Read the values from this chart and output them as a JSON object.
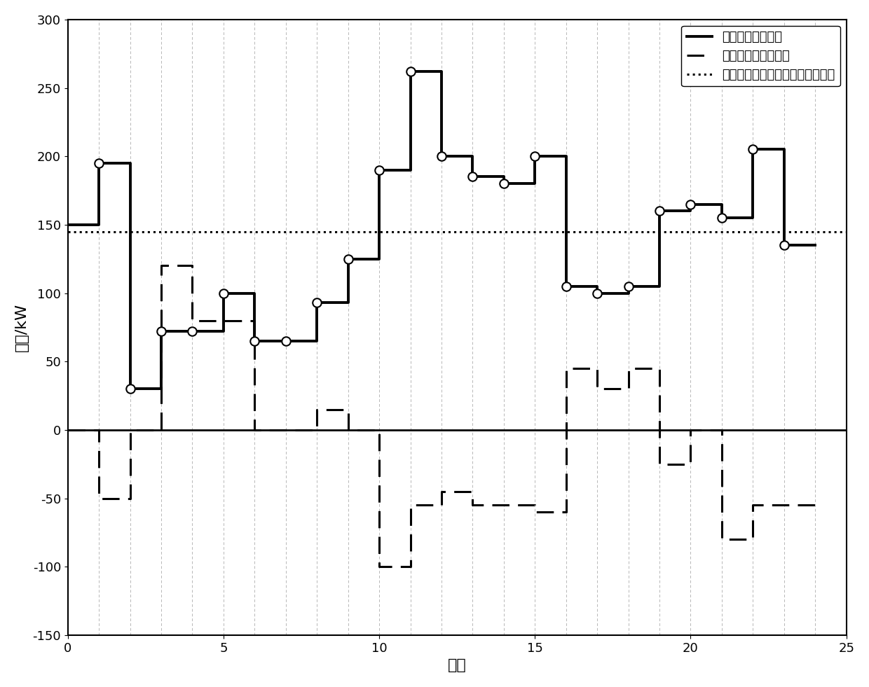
{
  "title": "",
  "xlabel": "时刻",
  "ylabel": "功率/kW",
  "xlim": [
    0,
    25
  ],
  "ylim": [
    -150,
    300
  ],
  "xticks": [
    0,
    5,
    10,
    15,
    20,
    25
  ],
  "yticks": [
    -150,
    -100,
    -50,
    0,
    50,
    100,
    150,
    200,
    250,
    300
  ],
  "dotted_line_y": 145,
  "load_x": [
    0,
    1,
    1,
    2,
    2,
    3,
    3,
    4,
    4,
    5,
    5,
    6,
    6,
    7,
    7,
    8,
    8,
    9,
    9,
    10,
    10,
    11,
    11,
    12,
    12,
    13,
    13,
    14,
    14,
    15,
    15,
    16,
    16,
    17,
    17,
    18,
    18,
    19,
    19,
    20,
    20,
    21,
    21,
    22,
    22,
    23,
    23,
    24
  ],
  "load_y": [
    150,
    150,
    195,
    195,
    30,
    30,
    72,
    72,
    72,
    72,
    100,
    100,
    65,
    65,
    65,
    65,
    93,
    93,
    125,
    125,
    190,
    190,
    262,
    262,
    200,
    200,
    185,
    185,
    180,
    180,
    200,
    200,
    105,
    105,
    100,
    100,
    105,
    105,
    160,
    160,
    165,
    165,
    155,
    155,
    205,
    205,
    135,
    135
  ],
  "circle_points_x": [
    1,
    2,
    3,
    4,
    5,
    6,
    7,
    8,
    9,
    10,
    11,
    12,
    13,
    14,
    15,
    16,
    17,
    18,
    19,
    20,
    21,
    22,
    23
  ],
  "circle_points_y": [
    195,
    30,
    72,
    72,
    100,
    65,
    65,
    93,
    125,
    190,
    262,
    200,
    185,
    180,
    200,
    105,
    100,
    105,
    160,
    165,
    155,
    205,
    135
  ],
  "schedule_x": [
    0,
    1,
    1,
    2,
    2,
    3,
    3,
    4,
    4,
    5,
    5,
    6,
    6,
    7,
    7,
    8,
    8,
    9,
    9,
    10,
    10,
    11,
    11,
    12,
    12,
    13,
    13,
    14,
    14,
    15,
    15,
    16,
    16,
    17,
    17,
    18,
    18,
    19,
    19,
    20,
    20,
    21,
    21,
    22,
    22,
    23,
    23,
    24
  ],
  "schedule_y": [
    0,
    0,
    -50,
    -50,
    0,
    0,
    120,
    120,
    80,
    80,
    80,
    80,
    0,
    0,
    0,
    0,
    15,
    15,
    0,
    0,
    -100,
    -100,
    -55,
    -55,
    -45,
    -45,
    -55,
    -55,
    -55,
    -55,
    -60,
    -60,
    45,
    45,
    30,
    30,
    45,
    45,
    -25,
    -25,
    0,
    0,
    -80,
    -80,
    -55,
    -55,
    -55,
    -55
  ],
  "background_color": "#ffffff",
  "line_color": "#000000",
  "legend_labels": [
    "负荷功率的预测估",
    "储能系统的调度计划",
    "储能按照调度计划运行的日标功率"
  ],
  "grid_color": "#aaaaaa"
}
